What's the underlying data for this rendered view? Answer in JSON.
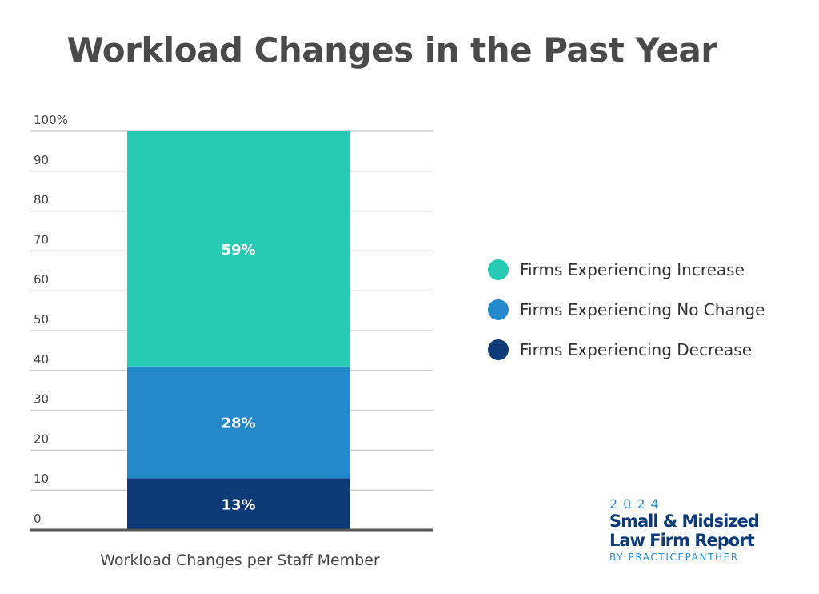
{
  "chart_data": {
    "type": "bar",
    "stacked": true,
    "title": "Workload Changes in the Past Year",
    "xlabel": "Workload Changes per Staff Member",
    "ylabel": "",
    "ylim": [
      0,
      100
    ],
    "yticks": [
      "0",
      "10",
      "20",
      "30",
      "40",
      "50",
      "60",
      "70",
      "80",
      "90",
      "100%"
    ],
    "categories": [
      "Workload Changes per Staff Member"
    ],
    "series": [
      {
        "name": "Firms Experiencing Decrease",
        "values": [
          13
        ],
        "label": "13%",
        "color": "#0e3b78"
      },
      {
        "name": "Firms Experiencing No Change",
        "values": [
          28
        ],
        "label": "28%",
        "color": "#2489c8"
      },
      {
        "name": "Firms Experiencing Increase",
        "values": [
          59
        ],
        "label": "59%",
        "color": "#27cbb4"
      }
    ],
    "legend": "right",
    "grid": true
  },
  "legend": {
    "items": [
      {
        "label": "Firms Experiencing Increase",
        "color": "#27cbb4"
      },
      {
        "label": "Firms Experiencing No Change",
        "color": "#2489c8"
      },
      {
        "label": "Firms Experiencing Decrease",
        "color": "#0e3b78"
      }
    ]
  },
  "branding": {
    "year": "2024",
    "line1": "Small & Midsized",
    "line2": "Law Firm Report",
    "byline": "BY PRACTICEPANTHER"
  }
}
